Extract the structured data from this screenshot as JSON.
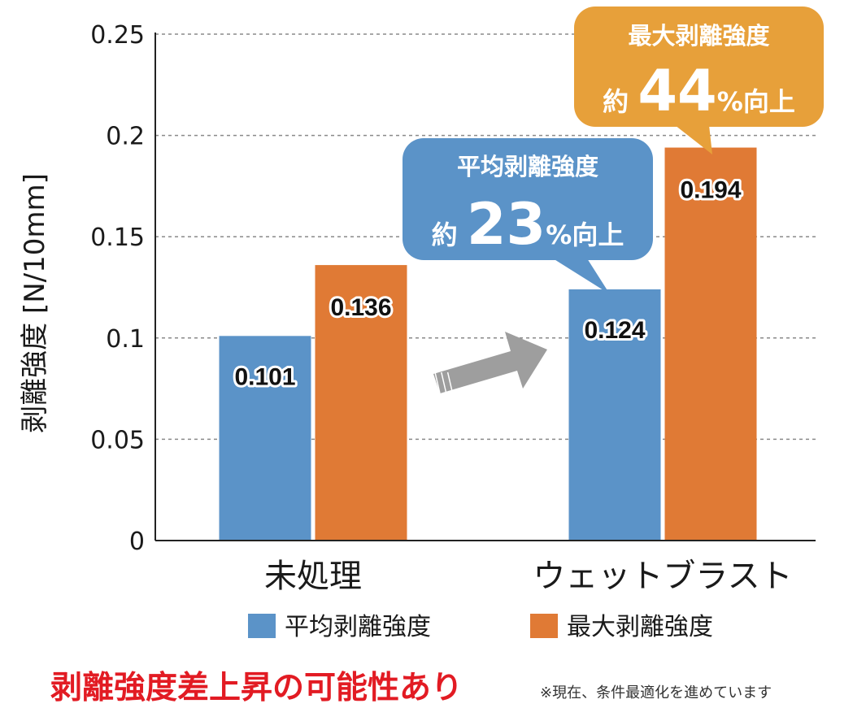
{
  "chart_data": {
    "type": "bar",
    "categories": [
      "未処理",
      "ウェットブラスト"
    ],
    "series": [
      {
        "name": "平均剥離強度",
        "values": [
          0.101,
          0.124
        ],
        "color": "#5b93c8"
      },
      {
        "name": "最大剥離強度",
        "values": [
          0.136,
          0.194
        ],
        "color": "#e07a35"
      }
    ],
    "data_labels": [
      [
        "0.101",
        "0.124"
      ],
      [
        "0.136",
        "0.194"
      ]
    ],
    "ylabel": "剥離強度 [N/10mm]",
    "xlabel": "",
    "ylim": [
      0,
      0.25
    ],
    "yticks": [
      0,
      0.05,
      0.1,
      0.15,
      0.2,
      0.25
    ],
    "ytick_labels": [
      "0",
      "0.05",
      "0.1",
      "0.15",
      "0.2",
      "0.25"
    ],
    "grid": true,
    "legend_position": "bottom",
    "annotations": [
      {
        "heading": "平均剥離強度",
        "prefix": "約",
        "number": "23",
        "suffix": "%向上",
        "color": "#5b93c8"
      },
      {
        "heading": "最大剥離強度",
        "prefix": "約",
        "number": "44",
        "suffix": "%向上",
        "color": "#e7a03a"
      }
    ],
    "arrow_color": "#9e9e9e"
  },
  "footer": {
    "headline": "剥離強度差上昇の可能性あり",
    "note": "※現在、条件最適化を進めています"
  }
}
